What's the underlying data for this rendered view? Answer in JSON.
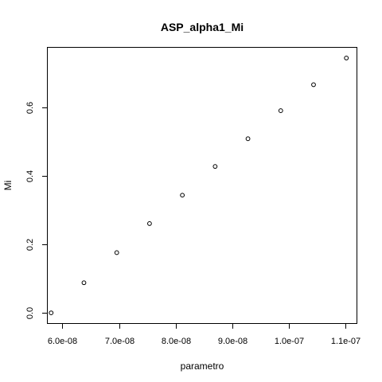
{
  "chart_data": {
    "type": "scatter",
    "title": "ASP_alpha1_Mi",
    "xlabel": "parametro",
    "ylabel": "Mi",
    "xlim": [
      5.74e-08,
      1.12e-07
    ],
    "ylim": [
      -0.03,
      0.775
    ],
    "x_ticks": [
      6e-08,
      7e-08,
      8e-08,
      9e-08,
      1e-07,
      1.1e-07
    ],
    "x_tick_labels": [
      "6.0e-08",
      "7.0e-08",
      "8.0e-08",
      "9.0e-08",
      "1.0e-07",
      "1.1e-07"
    ],
    "y_ticks": [
      0,
      0.2,
      0.4,
      0.6
    ],
    "y_tick_labels": [
      "0.0",
      "0.2",
      "0.4",
      "0.6"
    ],
    "grid": false,
    "marker": "open-circle",
    "x": [
      5.8e-08,
      6.38e-08,
      6.96e-08,
      7.54e-08,
      8.12e-08,
      8.7e-08,
      9.28e-08,
      9.86e-08,
      1.044e-07,
      1.102e-07
    ],
    "y": [
      0.0,
      0.088,
      0.176,
      0.261,
      0.344,
      0.428,
      0.509,
      0.591,
      0.667,
      0.745
    ]
  }
}
